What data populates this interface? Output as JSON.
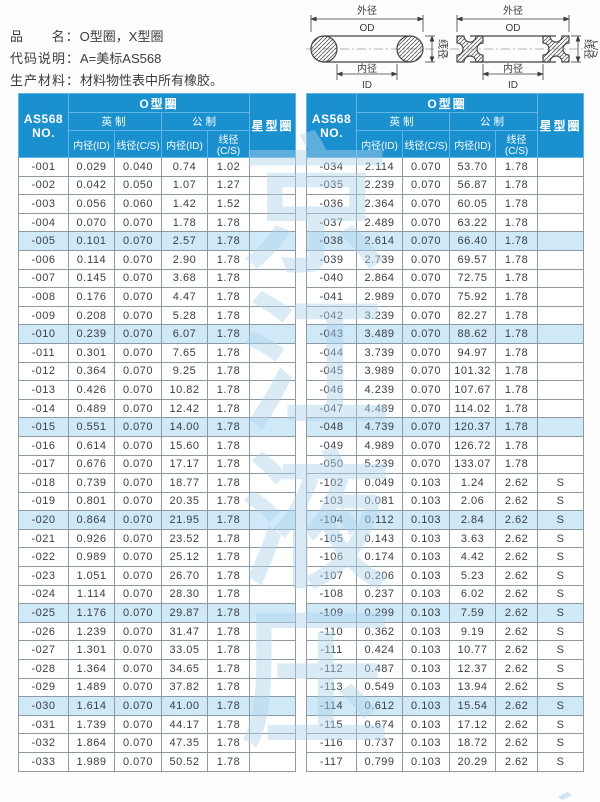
{
  "info": [
    {
      "label": "品      名：",
      "value": "O型圈，X型圈"
    },
    {
      "label": "代码说明：",
      "value": "A=美标AS568"
    },
    {
      "label": "生产材料：",
      "value": "材料物性表中所有橡胶。"
    }
  ],
  "diagram_labels": {
    "od": "外径",
    "od_abbr": "OD",
    "id": "内径",
    "id_abbr": "ID",
    "cs": "线径",
    "cs_abbr": "C/S"
  },
  "table_header": {
    "no_line1": "AS568",
    "no_line2": "NO.",
    "group_oring": "O型圈",
    "group_star": "星型圈",
    "sub_imperial": "英制",
    "sub_metric": "公制",
    "col_id": "内径(ID)",
    "col_cs": "线径(C/S)"
  },
  "tables": {
    "left_rows": [
      [
        "-001",
        "0.029",
        "0.040",
        "0.74",
        "1.02",
        ""
      ],
      [
        "-002",
        "0.042",
        "0.050",
        "1.07",
        "1.27",
        ""
      ],
      [
        "-003",
        "0.056",
        "0.060",
        "1.42",
        "1.52",
        ""
      ],
      [
        "-004",
        "0.070",
        "0.070",
        "1.78",
        "1.78",
        ""
      ],
      [
        "-005",
        "0.101",
        "0.070",
        "2.57",
        "1.78",
        ""
      ],
      [
        "-006",
        "0.114",
        "0.070",
        "2.90",
        "1.78",
        ""
      ],
      [
        "-007",
        "0.145",
        "0.070",
        "3.68",
        "1.78",
        ""
      ],
      [
        "-008",
        "0.176",
        "0.070",
        "4.47",
        "1.78",
        ""
      ],
      [
        "-009",
        "0.208",
        "0.070",
        "5.28",
        "1.78",
        ""
      ],
      [
        "-010",
        "0.239",
        "0.070",
        "6.07",
        "1.78",
        ""
      ],
      [
        "-011",
        "0.301",
        "0.070",
        "7.65",
        "1.78",
        ""
      ],
      [
        "-012",
        "0.364",
        "0.070",
        "9.25",
        "1.78",
        ""
      ],
      [
        "-013",
        "0.426",
        "0.070",
        "10.82",
        "1.78",
        ""
      ],
      [
        "-014",
        "0.489",
        "0.070",
        "12.42",
        "1.78",
        ""
      ],
      [
        "-015",
        "0.551",
        "0.070",
        "14.00",
        "1.78",
        ""
      ],
      [
        "-016",
        "0.614",
        "0.070",
        "15.60",
        "1.78",
        ""
      ],
      [
        "-017",
        "0.676",
        "0.070",
        "17.17",
        "1.78",
        ""
      ],
      [
        "-018",
        "0.739",
        "0.070",
        "18.77",
        "1.78",
        ""
      ],
      [
        "-019",
        "0.801",
        "0.070",
        "20.35",
        "1.78",
        ""
      ],
      [
        "-020",
        "0.864",
        "0.070",
        "21.95",
        "1.78",
        ""
      ],
      [
        "-021",
        "0.926",
        "0.070",
        "23.52",
        "1.78",
        ""
      ],
      [
        "-022",
        "0.989",
        "0.070",
        "25.12",
        "1.78",
        ""
      ],
      [
        "-023",
        "1.051",
        "0.070",
        "26.70",
        "1.78",
        ""
      ],
      [
        "-024",
        "1.114",
        "0.070",
        "28.30",
        "1.78",
        ""
      ],
      [
        "-025",
        "1.176",
        "0.070",
        "29.87",
        "1.78",
        ""
      ],
      [
        "-026",
        "1.239",
        "0.070",
        "31.47",
        "1.78",
        ""
      ],
      [
        "-027",
        "1.301",
        "0.070",
        "33.05",
        "1.78",
        ""
      ],
      [
        "-028",
        "1.364",
        "0.070",
        "34.65",
        "1.78",
        ""
      ],
      [
        "-029",
        "1.489",
        "0.070",
        "37.82",
        "1.78",
        ""
      ],
      [
        "-030",
        "1.614",
        "0.070",
        "41.00",
        "1.78",
        ""
      ],
      [
        "-031",
        "1.739",
        "0.070",
        "44.17",
        "1.78",
        ""
      ],
      [
        "-032",
        "1.864",
        "0.070",
        "47.35",
        "1.78",
        ""
      ],
      [
        "-033",
        "1.989",
        "0.070",
        "50.52",
        "1.78",
        ""
      ]
    ],
    "right_rows": [
      [
        "-034",
        "2.114",
        "0.070",
        "53.70",
        "1.78",
        ""
      ],
      [
        "-035",
        "2.239",
        "0.070",
        "56.87",
        "1.78",
        ""
      ],
      [
        "-036",
        "2.364",
        "0.070",
        "60.05",
        "1.78",
        ""
      ],
      [
        "-037",
        "2.489",
        "0.070",
        "63.22",
        "1.78",
        ""
      ],
      [
        "-038",
        "2.614",
        "0.070",
        "66.40",
        "1.78",
        ""
      ],
      [
        "-039",
        "2.739",
        "0.070",
        "69.57",
        "1.78",
        ""
      ],
      [
        "-040",
        "2.864",
        "0.070",
        "72.75",
        "1.78",
        ""
      ],
      [
        "-041",
        "2.989",
        "0.070",
        "75.92",
        "1.78",
        ""
      ],
      [
        "-042",
        "3.239",
        "0.070",
        "82.27",
        "1.78",
        ""
      ],
      [
        "-043",
        "3.489",
        "0.070",
        "88.62",
        "1.78",
        ""
      ],
      [
        "-044",
        "3.739",
        "0.070",
        "94.97",
        "1.78",
        ""
      ],
      [
        "-045",
        "3.989",
        "0.070",
        "101.32",
        "1.78",
        ""
      ],
      [
        "-046",
        "4.239",
        "0.070",
        "107.67",
        "1.78",
        ""
      ],
      [
        "-047",
        "4.489",
        "0.070",
        "114.02",
        "1.78",
        ""
      ],
      [
        "-048",
        "4.739",
        "0.070",
        "120.37",
        "1.78",
        ""
      ],
      [
        "-049",
        "4.989",
        "0.070",
        "126.72",
        "1.78",
        ""
      ],
      [
        "-050",
        "5.239",
        "0.070",
        "133.07",
        "1.78",
        ""
      ],
      [
        "-102",
        "0.049",
        "0.103",
        "1.24",
        "2.62",
        "S"
      ],
      [
        "-103",
        "0.081",
        "0.103",
        "2.06",
        "2.62",
        "S"
      ],
      [
        "-104",
        "0.112",
        "0.103",
        "2.84",
        "2.62",
        "S"
      ],
      [
        "-105",
        "0.143",
        "0.103",
        "3.63",
        "2.62",
        "S"
      ],
      [
        "-106",
        "0.174",
        "0.103",
        "4.42",
        "2.62",
        "S"
      ],
      [
        "-107",
        "0.206",
        "0.103",
        "5.23",
        "2.62",
        "S"
      ],
      [
        "-108",
        "0.237",
        "0.103",
        "6.02",
        "2.62",
        "S"
      ],
      [
        "-109",
        "0.299",
        "0.103",
        "7.59",
        "2.62",
        "S"
      ],
      [
        "-110",
        "0.362",
        "0.103",
        "9.19",
        "2.62",
        "S"
      ],
      [
        "-111",
        "0.424",
        "0.103",
        "10.77",
        "2.62",
        "S"
      ],
      [
        "-112",
        "0.487",
        "0.103",
        "12.37",
        "2.62",
        "S"
      ],
      [
        "-113",
        "0.549",
        "0.103",
        "13.94",
        "2.62",
        "S"
      ],
      [
        "-114",
        "0.612",
        "0.103",
        "15.54",
        "2.62",
        "S"
      ],
      [
        "-115",
        "0.674",
        "0.103",
        "17.12",
        "2.62",
        "S"
      ],
      [
        "-116",
        "0.737",
        "0.103",
        "18.72",
        "2.62",
        "S"
      ],
      [
        "-117",
        "0.799",
        "0.103",
        "20.29",
        "2.62",
        "S"
      ]
    ]
  },
  "watermark": "京江液压",
  "colors": {
    "header_blue": "#1b90cf",
    "highlight_row": "#cfe9f8",
    "watermark_blue": "#aed3ec",
    "grid_gray": "#8f99a1"
  }
}
